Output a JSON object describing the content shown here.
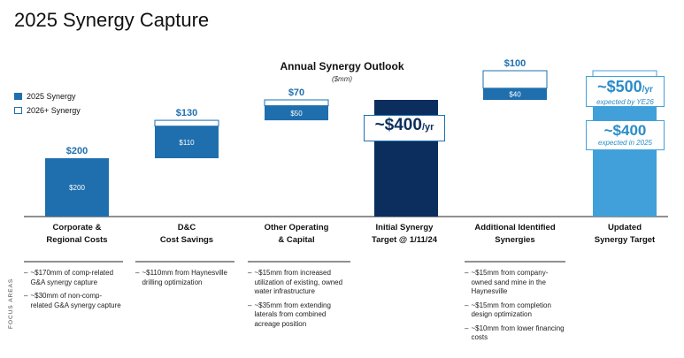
{
  "page_title": "2025 Synergy Capture",
  "legend": {
    "items": [
      {
        "label": "2025 Synergy",
        "color": "#1f6fae",
        "filled": true
      },
      {
        "label": "2026+ Synergy",
        "color": "#1f6fae",
        "filled": false
      }
    ]
  },
  "focus_areas_label": "FOCUS AREAS",
  "chart_data": {
    "type": "bar",
    "subtype": "waterfall",
    "title": "Annual Synergy Outlook",
    "subtitle": "($mm)",
    "ylim": [
      0,
      520
    ],
    "colors": {
      "synergy_2025": "#1f6fae",
      "outline_2026": "#1f6fae",
      "initial": "#0b2e5e",
      "updated": "#41a0d9"
    },
    "bars": [
      {
        "category": "Corporate & Regional Costs",
        "base": 0,
        "total": 200,
        "filled": 200,
        "total_label": "$200",
        "filled_label": "$200",
        "color": "#1f6fae"
      },
      {
        "category": "D&C Cost Savings",
        "base": 200,
        "total": 130,
        "filled": 110,
        "total_label": "$130",
        "filled_label": "$110",
        "color": "#1f6fae"
      },
      {
        "category": "Other Operating & Capital",
        "base": 330,
        "total": 70,
        "filled": 50,
        "total_label": "$70",
        "filled_label": "$50",
        "color": "#1f6fae"
      },
      {
        "category": "Initial Synergy Target @ 1/11/24",
        "base": 0,
        "total": 400,
        "filled": 400,
        "color": "#0b2e5e",
        "callout": {
          "value": "~$400",
          "unit": "/yr"
        }
      },
      {
        "category": "Additional Identified Synergies",
        "base": 400,
        "total": 100,
        "filled": 40,
        "total_label": "$100",
        "filled_label": "$40",
        "color": "#1f6fae"
      },
      {
        "category": "Updated Synergy Target",
        "base": 0,
        "total": 500,
        "filled": 400,
        "color": "#41a0d9",
        "callout_top": {
          "value": "~$500",
          "unit": "/yr",
          "note": "expected by YE26"
        },
        "callout_inner": {
          "value": "~$400",
          "note": "expected in 2025"
        }
      }
    ]
  },
  "categories": [
    {
      "line1": "Corporate &",
      "line2": "Regional Costs"
    },
    {
      "line1": "D&C",
      "line2": "Cost Savings"
    },
    {
      "line1": "Other Operating",
      "line2": "& Capital"
    },
    {
      "line1": "Initial Synergy",
      "line2": "Target @ 1/11/24"
    },
    {
      "line1": "Additional Identified",
      "line2": "Synergies"
    },
    {
      "line1": "Updated",
      "line2": "Synergy Target"
    }
  ],
  "notes": {
    "corporate": [
      "~$170mm of comp-related G&A synergy capture",
      "~$30mm of non-comp-related G&A synergy capture"
    ],
    "dc": [
      "~$110mm from Haynesville drilling optimization"
    ],
    "other": [
      "~$15mm from increased utilization of existing, owned water infrastructure",
      "~$35mm from extending laterals from combined acreage position"
    ],
    "additional": [
      "~$15mm from company-owned sand mine in the Haynesville",
      "~$15mm from completion design optimization",
      "~$10mm from lower financing costs"
    ]
  }
}
